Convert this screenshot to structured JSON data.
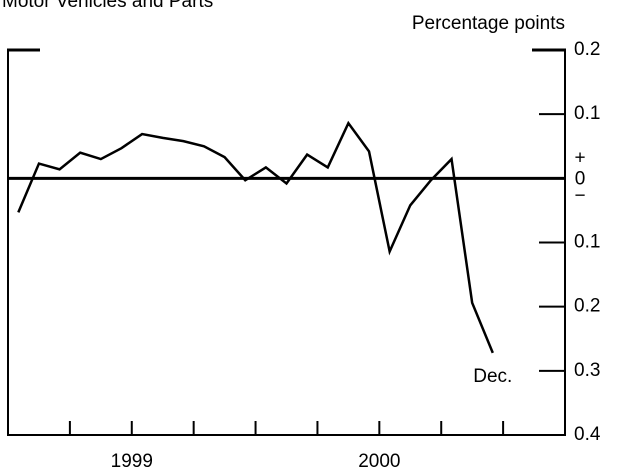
{
  "chart_data": {
    "type": "line",
    "title": "Motor Vehicles and Parts",
    "y_axis_label": "Percentage points",
    "categories": [
      null,
      null,
      null,
      null,
      null,
      null,
      null,
      null,
      null,
      null,
      null,
      null,
      null,
      null,
      null,
      null,
      null,
      null,
      null,
      null,
      null,
      null,
      null,
      null
    ],
    "values": [
      -0.053,
      0.023,
      0.014,
      0.04,
      0.03,
      0.047,
      0.069,
      0.063,
      0.058,
      0.05,
      0.033,
      -0.003,
      0.017,
      -0.008,
      0.037,
      0.017,
      0.086,
      0.042,
      -0.114,
      -0.042,
      -0.003,
      0.03,
      -0.194,
      -0.272
    ],
    "color": "#000000",
    "year_labels": [
      "1999",
      "2000"
    ],
    "xlim": [
      -0.5,
      26.5
    ],
    "xticks": [
      2.5,
      5.5,
      8.5,
      11.5,
      14.5,
      17.5,
      20.5,
      23.5
    ],
    "ylim": [
      -0.4,
      0.2
    ],
    "yticks": [
      0.2,
      0.1,
      0,
      {
        "value": -0.1,
        "label": "0.1"
      },
      {
        "value": -0.2,
        "label": "0.2"
      },
      {
        "value": -0.3,
        "label": "0.3"
      },
      {
        "value": -0.4,
        "label": "0.4"
      }
    ],
    "zero_signs": {
      "above": "+",
      "below": "−"
    },
    "annotation": "Dec."
  }
}
